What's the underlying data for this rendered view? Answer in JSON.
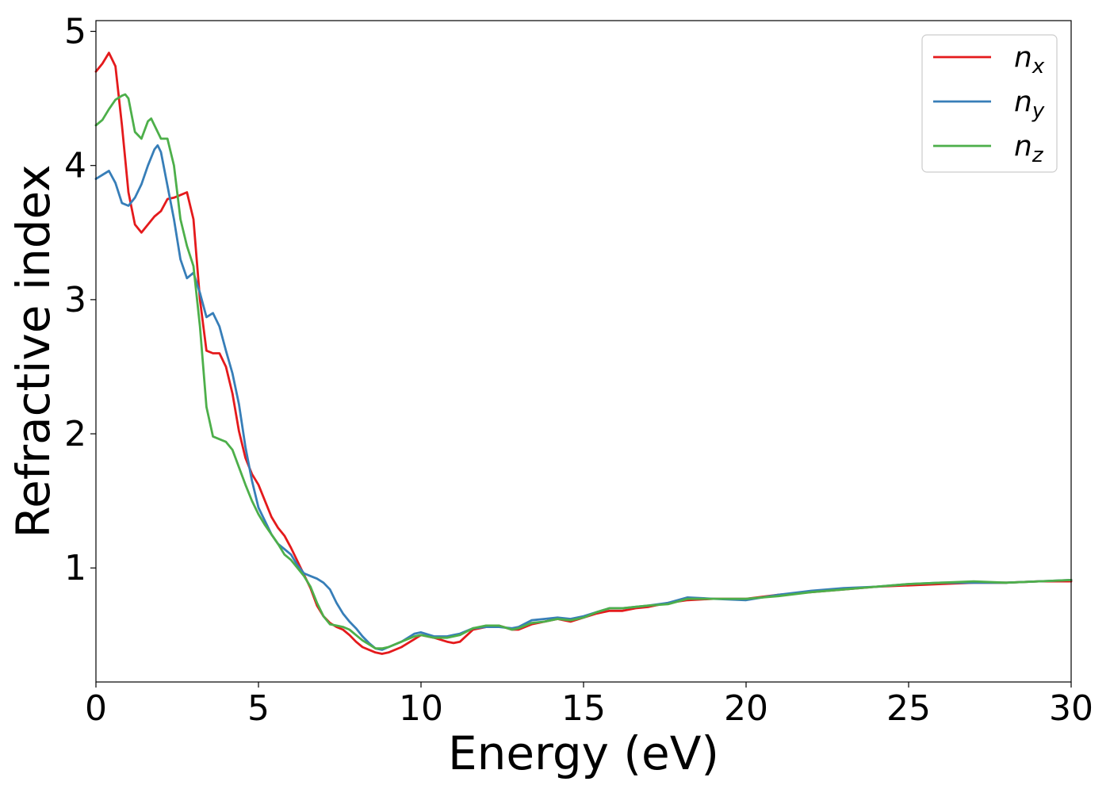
{
  "chart_data": {
    "type": "line",
    "title": "",
    "xlabel": "Energy (eV)",
    "ylabel": "Refractive index",
    "xlim": [
      0,
      30
    ],
    "ylim": [
      0.15,
      5.08
    ],
    "xticks": [
      0,
      5,
      10,
      15,
      20,
      25,
      30
    ],
    "yticks": [
      1,
      2,
      3,
      4,
      5
    ],
    "grid": false,
    "legend_position": "top-right",
    "series": [
      {
        "name": "n",
        "subscript": "x",
        "color": "#e41a1c",
        "points": [
          [
            0,
            4.7
          ],
          [
            0.2,
            4.76
          ],
          [
            0.4,
            4.84
          ],
          [
            0.6,
            4.74
          ],
          [
            0.8,
            4.3
          ],
          [
            1.0,
            3.8
          ],
          [
            1.2,
            3.56
          ],
          [
            1.4,
            3.5
          ],
          [
            1.6,
            3.56
          ],
          [
            1.8,
            3.62
          ],
          [
            2.0,
            3.66
          ],
          [
            2.2,
            3.75
          ],
          [
            2.4,
            3.76
          ],
          [
            2.6,
            3.78
          ],
          [
            2.8,
            3.8
          ],
          [
            3.0,
            3.6
          ],
          [
            3.2,
            3.0
          ],
          [
            3.4,
            2.62
          ],
          [
            3.6,
            2.6
          ],
          [
            3.8,
            2.6
          ],
          [
            4.0,
            2.5
          ],
          [
            4.2,
            2.3
          ],
          [
            4.4,
            2.02
          ],
          [
            4.6,
            1.82
          ],
          [
            4.8,
            1.7
          ],
          [
            5.0,
            1.62
          ],
          [
            5.2,
            1.5
          ],
          [
            5.4,
            1.38
          ],
          [
            5.6,
            1.3
          ],
          [
            5.8,
            1.24
          ],
          [
            6.0,
            1.15
          ],
          [
            6.2,
            1.05
          ],
          [
            6.4,
            0.95
          ],
          [
            6.6,
            0.85
          ],
          [
            6.8,
            0.72
          ],
          [
            7.0,
            0.64
          ],
          [
            7.2,
            0.59
          ],
          [
            7.4,
            0.56
          ],
          [
            7.6,
            0.54
          ],
          [
            7.8,
            0.5
          ],
          [
            8.0,
            0.45
          ],
          [
            8.2,
            0.41
          ],
          [
            8.4,
            0.39
          ],
          [
            8.6,
            0.37
          ],
          [
            8.8,
            0.36
          ],
          [
            9.0,
            0.37
          ],
          [
            9.4,
            0.41
          ],
          [
            9.8,
            0.47
          ],
          [
            10.0,
            0.5
          ],
          [
            10.4,
            0.48
          ],
          [
            10.8,
            0.45
          ],
          [
            11.0,
            0.44
          ],
          [
            11.2,
            0.45
          ],
          [
            11.6,
            0.54
          ],
          [
            12.0,
            0.56
          ],
          [
            12.4,
            0.57
          ],
          [
            12.8,
            0.54
          ],
          [
            13.0,
            0.54
          ],
          [
            13.4,
            0.58
          ],
          [
            13.8,
            0.6
          ],
          [
            14.2,
            0.62
          ],
          [
            14.6,
            0.6
          ],
          [
            15.0,
            0.63
          ],
          [
            15.4,
            0.66
          ],
          [
            15.8,
            0.68
          ],
          [
            16.2,
            0.68
          ],
          [
            16.6,
            0.7
          ],
          [
            17.0,
            0.71
          ],
          [
            17.6,
            0.74
          ],
          [
            18.2,
            0.76
          ],
          [
            19.0,
            0.77
          ],
          [
            20.0,
            0.77
          ],
          [
            21.0,
            0.8
          ],
          [
            22.0,
            0.82
          ],
          [
            23.0,
            0.84
          ],
          [
            24.0,
            0.86
          ],
          [
            25.0,
            0.87
          ],
          [
            26.0,
            0.88
          ],
          [
            27.0,
            0.89
          ],
          [
            28.0,
            0.89
          ],
          [
            29.0,
            0.9
          ],
          [
            30.0,
            0.9
          ]
        ]
      },
      {
        "name": "n",
        "subscript": "y",
        "color": "#377eb8",
        "points": [
          [
            0,
            3.9
          ],
          [
            0.2,
            3.93
          ],
          [
            0.4,
            3.96
          ],
          [
            0.6,
            3.87
          ],
          [
            0.8,
            3.72
          ],
          [
            1.0,
            3.7
          ],
          [
            1.2,
            3.76
          ],
          [
            1.4,
            3.86
          ],
          [
            1.6,
            4.0
          ],
          [
            1.8,
            4.12
          ],
          [
            1.9,
            4.15
          ],
          [
            2.0,
            4.1
          ],
          [
            2.2,
            3.85
          ],
          [
            2.4,
            3.6
          ],
          [
            2.6,
            3.3
          ],
          [
            2.8,
            3.16
          ],
          [
            3.0,
            3.2
          ],
          [
            3.2,
            3.05
          ],
          [
            3.4,
            2.87
          ],
          [
            3.6,
            2.9
          ],
          [
            3.8,
            2.8
          ],
          [
            4.0,
            2.62
          ],
          [
            4.2,
            2.45
          ],
          [
            4.4,
            2.22
          ],
          [
            4.6,
            1.9
          ],
          [
            4.8,
            1.65
          ],
          [
            5.0,
            1.45
          ],
          [
            5.2,
            1.35
          ],
          [
            5.4,
            1.25
          ],
          [
            5.6,
            1.18
          ],
          [
            5.8,
            1.14
          ],
          [
            6.0,
            1.1
          ],
          [
            6.2,
            1.02
          ],
          [
            6.4,
            0.96
          ],
          [
            6.6,
            0.94
          ],
          [
            6.8,
            0.92
          ],
          [
            7.0,
            0.89
          ],
          [
            7.2,
            0.84
          ],
          [
            7.4,
            0.74
          ],
          [
            7.6,
            0.66
          ],
          [
            7.8,
            0.6
          ],
          [
            8.0,
            0.55
          ],
          [
            8.2,
            0.49
          ],
          [
            8.4,
            0.44
          ],
          [
            8.6,
            0.4
          ],
          [
            8.8,
            0.39
          ],
          [
            9.0,
            0.41
          ],
          [
            9.4,
            0.45
          ],
          [
            9.8,
            0.51
          ],
          [
            10.0,
            0.52
          ],
          [
            10.4,
            0.49
          ],
          [
            10.8,
            0.49
          ],
          [
            11.0,
            0.5
          ],
          [
            11.2,
            0.51
          ],
          [
            11.6,
            0.55
          ],
          [
            12.0,
            0.56
          ],
          [
            12.4,
            0.56
          ],
          [
            12.8,
            0.55
          ],
          [
            13.0,
            0.56
          ],
          [
            13.4,
            0.61
          ],
          [
            13.8,
            0.62
          ],
          [
            14.2,
            0.63
          ],
          [
            14.6,
            0.62
          ],
          [
            15.0,
            0.64
          ],
          [
            15.4,
            0.67
          ],
          [
            15.8,
            0.7
          ],
          [
            16.2,
            0.7
          ],
          [
            16.6,
            0.71
          ],
          [
            17.0,
            0.72
          ],
          [
            17.6,
            0.74
          ],
          [
            18.2,
            0.78
          ],
          [
            19.0,
            0.77
          ],
          [
            20.0,
            0.76
          ],
          [
            21.0,
            0.8
          ],
          [
            22.0,
            0.83
          ],
          [
            23.0,
            0.85
          ],
          [
            24.0,
            0.86
          ],
          [
            25.0,
            0.88
          ],
          [
            26.0,
            0.89
          ],
          [
            27.0,
            0.89
          ],
          [
            28.0,
            0.89
          ],
          [
            29.0,
            0.9
          ],
          [
            30.0,
            0.91
          ]
        ]
      },
      {
        "name": "n",
        "subscript": "z",
        "color": "#4daf4a",
        "points": [
          [
            0,
            4.3
          ],
          [
            0.2,
            4.34
          ],
          [
            0.4,
            4.42
          ],
          [
            0.6,
            4.49
          ],
          [
            0.8,
            4.52
          ],
          [
            0.9,
            4.53
          ],
          [
            1.0,
            4.5
          ],
          [
            1.2,
            4.25
          ],
          [
            1.4,
            4.2
          ],
          [
            1.6,
            4.33
          ],
          [
            1.7,
            4.35
          ],
          [
            1.8,
            4.3
          ],
          [
            2.0,
            4.2
          ],
          [
            2.2,
            4.2
          ],
          [
            2.4,
            4.0
          ],
          [
            2.6,
            3.6
          ],
          [
            2.8,
            3.4
          ],
          [
            3.0,
            3.25
          ],
          [
            3.2,
            2.8
          ],
          [
            3.4,
            2.2
          ],
          [
            3.6,
            1.98
          ],
          [
            3.8,
            1.96
          ],
          [
            4.0,
            1.94
          ],
          [
            4.2,
            1.88
          ],
          [
            4.4,
            1.75
          ],
          [
            4.6,
            1.62
          ],
          [
            4.8,
            1.5
          ],
          [
            5.0,
            1.4
          ],
          [
            5.2,
            1.32
          ],
          [
            5.4,
            1.25
          ],
          [
            5.6,
            1.18
          ],
          [
            5.8,
            1.1
          ],
          [
            6.0,
            1.06
          ],
          [
            6.2,
            1.0
          ],
          [
            6.4,
            0.94
          ],
          [
            6.6,
            0.86
          ],
          [
            6.8,
            0.74
          ],
          [
            7.0,
            0.64
          ],
          [
            7.2,
            0.58
          ],
          [
            7.4,
            0.57
          ],
          [
            7.6,
            0.56
          ],
          [
            7.8,
            0.54
          ],
          [
            8.0,
            0.5
          ],
          [
            8.2,
            0.46
          ],
          [
            8.4,
            0.43
          ],
          [
            8.6,
            0.4
          ],
          [
            8.8,
            0.4
          ],
          [
            9.0,
            0.41
          ],
          [
            9.4,
            0.45
          ],
          [
            9.8,
            0.49
          ],
          [
            10.0,
            0.5
          ],
          [
            10.4,
            0.48
          ],
          [
            10.8,
            0.48
          ],
          [
            11.0,
            0.49
          ],
          [
            11.2,
            0.5
          ],
          [
            11.6,
            0.55
          ],
          [
            12.0,
            0.57
          ],
          [
            12.4,
            0.57
          ],
          [
            12.8,
            0.54
          ],
          [
            13.0,
            0.55
          ],
          [
            13.4,
            0.59
          ],
          [
            13.8,
            0.6
          ],
          [
            14.2,
            0.62
          ],
          [
            14.6,
            0.61
          ],
          [
            15.0,
            0.63
          ],
          [
            15.4,
            0.67
          ],
          [
            15.8,
            0.7
          ],
          [
            16.2,
            0.7
          ],
          [
            16.6,
            0.71
          ],
          [
            17.0,
            0.72
          ],
          [
            17.6,
            0.73
          ],
          [
            18.2,
            0.77
          ],
          [
            19.0,
            0.77
          ],
          [
            20.0,
            0.77
          ],
          [
            21.0,
            0.79
          ],
          [
            22.0,
            0.82
          ],
          [
            23.0,
            0.84
          ],
          [
            24.0,
            0.86
          ],
          [
            25.0,
            0.88
          ],
          [
            26.0,
            0.89
          ],
          [
            27.0,
            0.9
          ],
          [
            28.0,
            0.89
          ],
          [
            29.0,
            0.9
          ],
          [
            30.0,
            0.91
          ]
        ]
      }
    ]
  }
}
